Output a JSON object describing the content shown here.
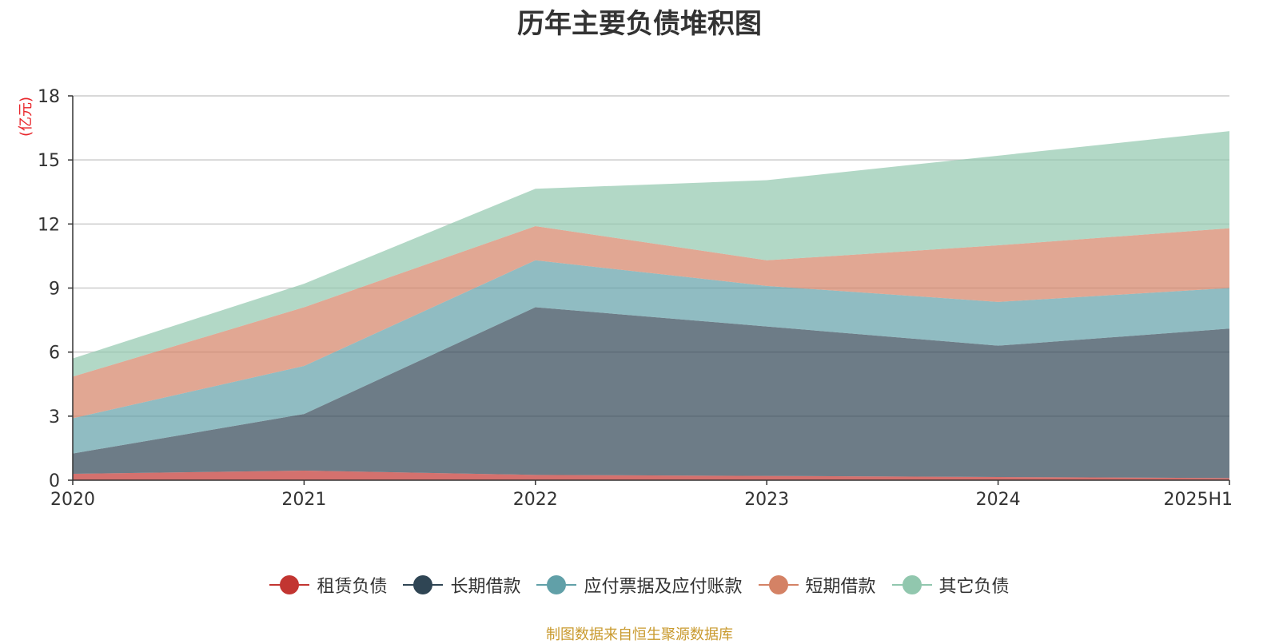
{
  "chart_data": {
    "type": "area",
    "stacked": true,
    "title": "历年主要负债堆积图",
    "unit": "(亿元)",
    "categories": [
      "2020",
      "2021",
      "2022",
      "2023",
      "2024",
      "2025H1"
    ],
    "ylim": [
      0,
      18
    ],
    "yticks": [
      "0",
      "3",
      "6",
      "9",
      "12",
      "15",
      "18"
    ],
    "grid": true,
    "legend_position": "bottom",
    "series": [
      {
        "name": "租赁负债",
        "color": "#c23531",
        "values": [
          0.3,
          0.45,
          0.25,
          0.2,
          0.15,
          0.1
        ]
      },
      {
        "name": "长期借款",
        "color": "#2f4554",
        "values": [
          0.95,
          2.65,
          7.85,
          7.0,
          6.15,
          7.0
        ]
      },
      {
        "name": "应付票据及应付账款",
        "color": "#61a0a8",
        "values": [
          1.65,
          2.25,
          2.2,
          1.9,
          2.05,
          1.9
        ]
      },
      {
        "name": "短期借款",
        "color": "#d48265",
        "values": [
          1.95,
          2.75,
          1.6,
          1.2,
          2.65,
          2.8
        ]
      },
      {
        "name": "其它负债",
        "color": "#91c7ae",
        "values": [
          0.85,
          1.1,
          1.75,
          3.75,
          4.2,
          4.55
        ]
      }
    ],
    "footer": "制图数据来自恒生聚源数据库"
  }
}
